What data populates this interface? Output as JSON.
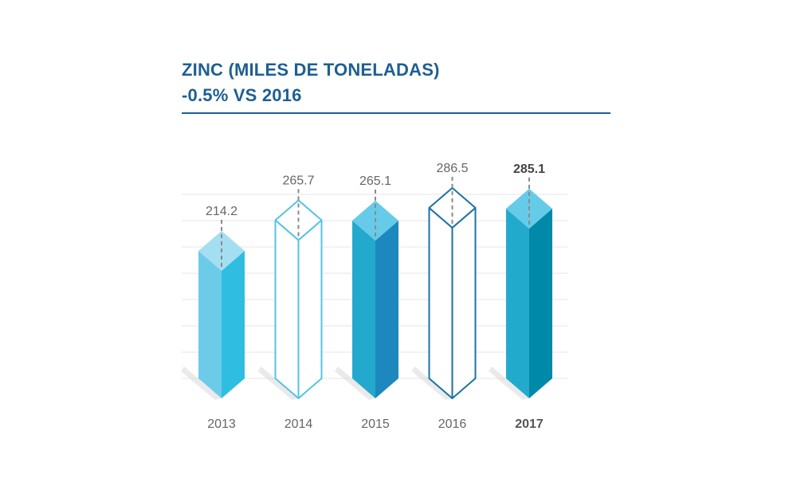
{
  "title": "ZINC (MILES DE TONELADAS)",
  "subtitle": "-0.5% VS 2016",
  "colors": {
    "title": "#1d5f93",
    "gridline": "#e6e6e6",
    "leader": "#8a8a8a"
  },
  "chart_data": {
    "type": "bar",
    "categories": [
      "2013",
      "2014",
      "2015",
      "2016",
      "2017"
    ],
    "values": [
      214.2,
      265.7,
      265.1,
      286.5,
      285.1
    ],
    "value_labels": [
      "214.2",
      "265.7",
      "265.1",
      "286.5",
      "285.1"
    ],
    "highlight": "2017",
    "grid": true,
    "bar_styles": [
      {
        "fill": "solid",
        "front": "#6ccbe9",
        "side": "#30bde2",
        "top": "#a4def1"
      },
      {
        "fill": "outline",
        "stroke": "#55c3e4"
      },
      {
        "fill": "solid",
        "front": "#23a9cd",
        "side": "#1d88bd",
        "top": "#66cbe8"
      },
      {
        "fill": "outline",
        "stroke": "#1a72a6"
      },
      {
        "fill": "solid",
        "front": "#22aacd",
        "side": "#0089a9",
        "top": "#66cbe8"
      }
    ]
  }
}
